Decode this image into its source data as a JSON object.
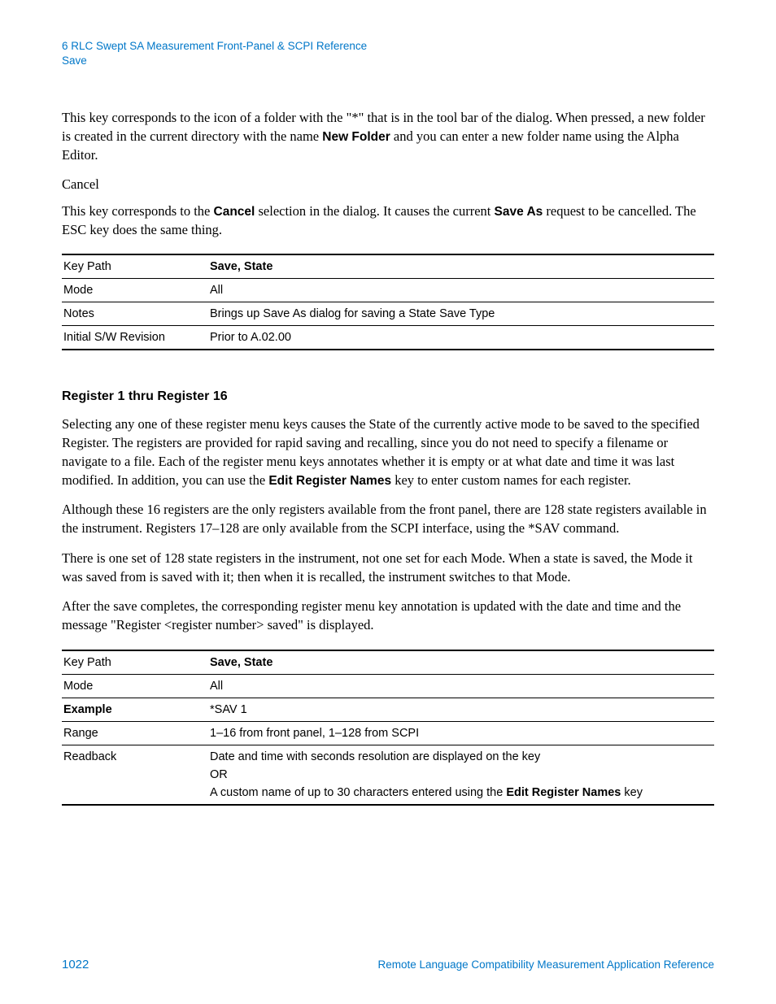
{
  "header": {
    "line1": "6  RLC Swept SA Measurement Front-Panel & SCPI Reference",
    "line2": "Save"
  },
  "p1": {
    "pre": "This key corresponds to the icon of a folder with the \"*\" that is in the tool bar of the dialog. When pressed, a new folder is created in the current directory with the name ",
    "bold": "New Folder",
    "post": " and you can enter a new folder name using the Alpha Editor."
  },
  "cancel_label": "Cancel",
  "p2": {
    "pre": "This key corresponds to the ",
    "b1": "Cancel",
    "mid": " selection in the dialog. It causes the current ",
    "b2": "Save As",
    "post": " request to be cancelled.  The ESC key does the same thing."
  },
  "table1": {
    "rows": [
      {
        "label": "Key Path",
        "label_bold": false,
        "value": "Save, State",
        "value_bold": true
      },
      {
        "label": "Mode",
        "label_bold": false,
        "value": "All",
        "value_bold": false
      },
      {
        "label": "Notes",
        "label_bold": false,
        "value": "Brings up Save As dialog for saving a State Save Type",
        "value_bold": false
      },
      {
        "label": "Initial S/W Revision",
        "label_bold": false,
        "value": "Prior to A.02.00",
        "value_bold": false
      }
    ]
  },
  "section_heading": "Register 1 thru Register 16",
  "p3": {
    "pre": "Selecting any one of these register menu keys causes the State of the currently active mode to be saved to the specified Register. The registers are provided for rapid saving and recalling, since you do not need to specify a filename or navigate to a file. Each of the register menu keys annotates whether it is empty or at what date and time it was last modified. In addition, you can use the ",
    "bold": "Edit Register Names",
    "post": " key to enter custom names for each register."
  },
  "p4": "Although these 16 registers are the only registers available from the front panel, there are 128 state registers available in the instrument. Registers 17–128 are only available from the SCPI interface, using the *SAV command.",
  "p5": "There is one set of 128 state registers in the instrument, not one set for each Mode.  When a state is saved, the Mode it was saved from is saved with it; then when it is recalled, the instrument switches to that Mode.",
  "p6": "After the save completes, the corresponding register menu key annotation is updated with the date and time and the message \"Register <register number> saved\" is displayed.",
  "table2": {
    "key_path_label": "Key Path",
    "key_path_value": "Save, State",
    "mode_label": "Mode",
    "mode_value": "All",
    "example_label": "Example",
    "example_value": "*SAV 1",
    "range_label": "Range",
    "range_value": "1–16 from front panel, 1–128 from SCPI",
    "readback_label": "Readback",
    "readback_line1": "Date and time with seconds resolution are displayed on the key",
    "readback_line2": "OR",
    "readback_line3_pre": "A custom name of up to 30 characters entered using the ",
    "readback_line3_bold": "Edit Register Names",
    "readback_line3_post": " key"
  },
  "footer": {
    "page_number": "1022",
    "doc_title": "Remote Language Compatibility Measurement Application Reference"
  }
}
